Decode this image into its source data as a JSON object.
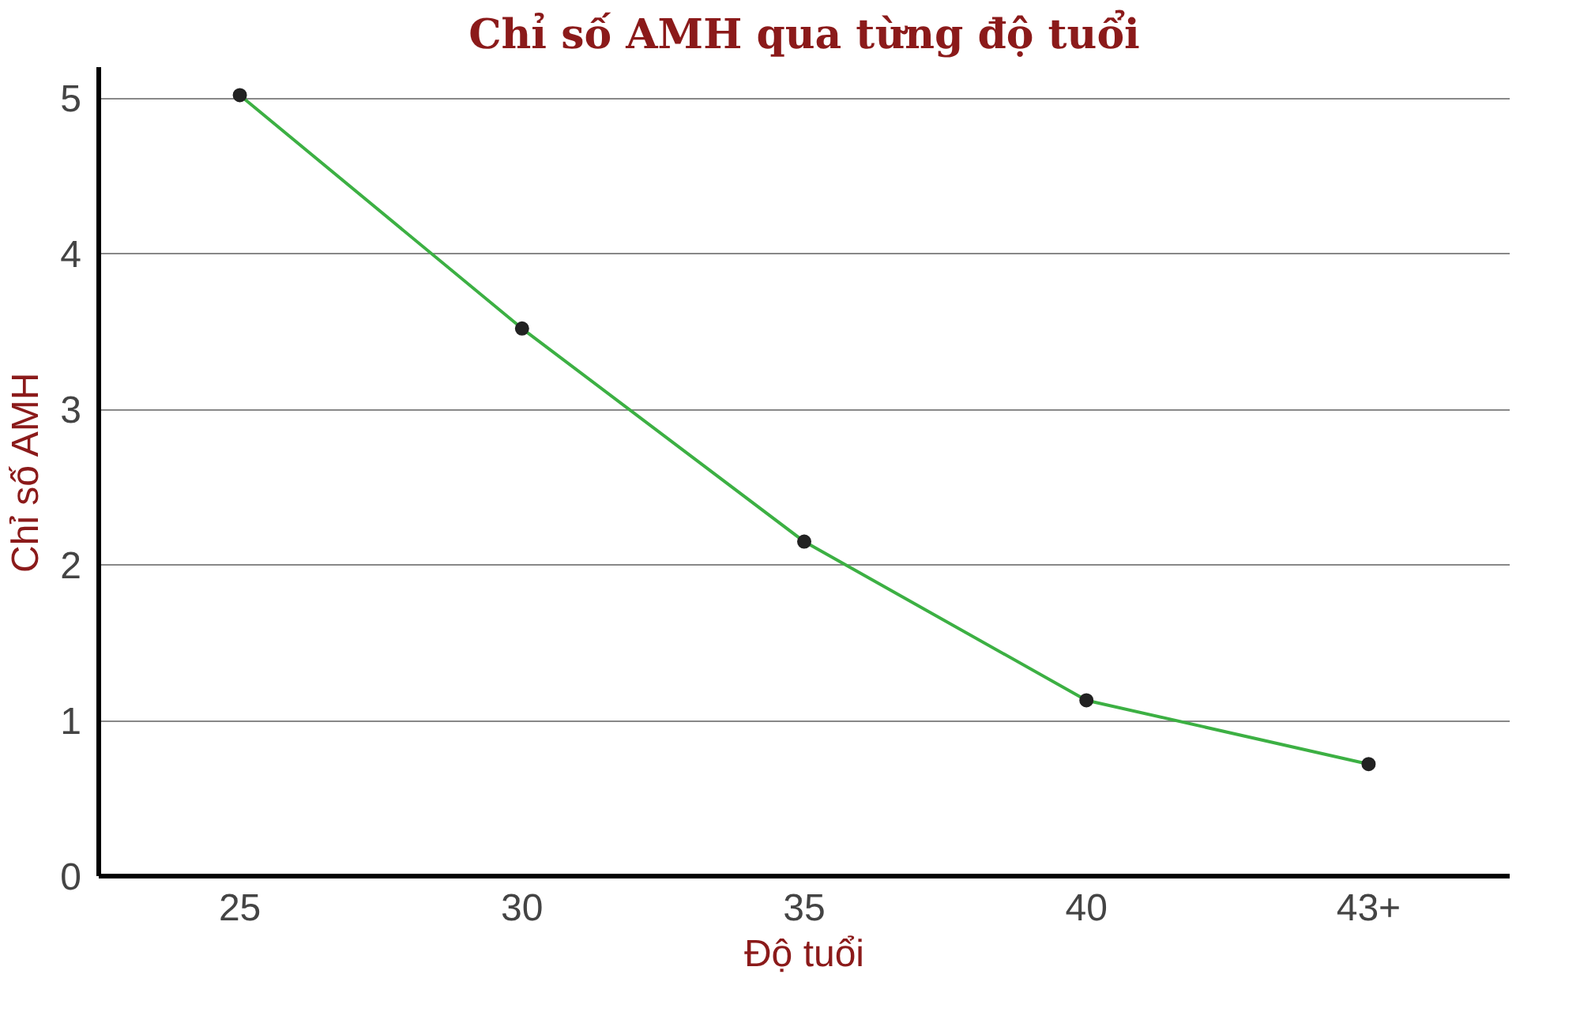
{
  "chart_data": {
    "type": "line",
    "title": "Chỉ số AMH qua từng độ tuổi",
    "xlabel": "Độ tuổi",
    "ylabel": "Chỉ số AMH",
    "categories": [
      "25",
      "30",
      "35",
      "40",
      "43+"
    ],
    "series": [
      {
        "color": "#3cb043",
        "values": [
          5.02,
          3.52,
          2.15,
          1.13,
          0.72
        ]
      }
    ],
    "ylim": [
      0,
      5.2
    ],
    "yticks": [
      0,
      1,
      2,
      3,
      4,
      5
    ],
    "grid": "y",
    "marker": "circle",
    "line_style": "solid"
  }
}
